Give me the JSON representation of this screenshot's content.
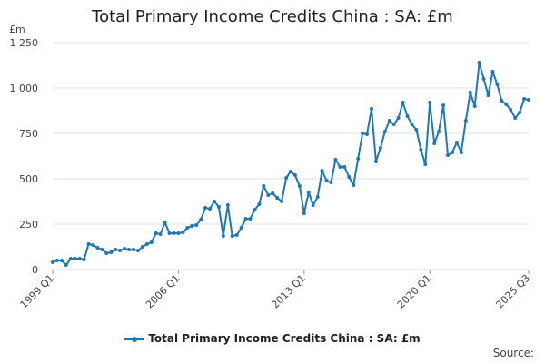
{
  "chart_data": {
    "type": "line",
    "title": "Total Primary Income Credits China : SA: £m",
    "unit_label": "£m",
    "source_label": "Source:",
    "ylim": [
      0,
      1250
    ],
    "yticks": [
      0,
      250,
      500,
      750,
      1000,
      1250
    ],
    "ytick_labels": [
      "0",
      "250",
      "500",
      "750",
      "1 000",
      "1 250"
    ],
    "grid": true,
    "legend_position": "bottom-center",
    "x_start": "1999 Q1",
    "x_end": "2025 Q3",
    "xticks": [
      "1999 Q1",
      "2006 Q1",
      "2013 Q1",
      "2020 Q1",
      "2025 Q3"
    ],
    "series": [
      {
        "name": "Total Primary Income Credits China : SA: £m",
        "color": "#1f77b4",
        "values": [
          40,
          50,
          50,
          25,
          60,
          60,
          60,
          55,
          140,
          135,
          120,
          110,
          90,
          95,
          110,
          105,
          115,
          110,
          110,
          105,
          125,
          140,
          150,
          200,
          195,
          260,
          200,
          200,
          200,
          205,
          230,
          240,
          245,
          275,
          340,
          335,
          375,
          345,
          185,
          355,
          185,
          190,
          230,
          280,
          280,
          330,
          360,
          460,
          410,
          420,
          395,
          375,
          505,
          540,
          520,
          460,
          310,
          425,
          355,
          400,
          545,
          490,
          480,
          605,
          565,
          565,
          510,
          465,
          610,
          750,
          745,
          885,
          595,
          670,
          760,
          820,
          800,
          835,
          920,
          845,
          800,
          770,
          660,
          580,
          920,
          695,
          760,
          905,
          630,
          645,
          700,
          645,
          820,
          975,
          900,
          1140,
          1050,
          960,
          1090,
          1020,
          930,
          910,
          880,
          835,
          865,
          940,
          935
        ]
      }
    ]
  }
}
